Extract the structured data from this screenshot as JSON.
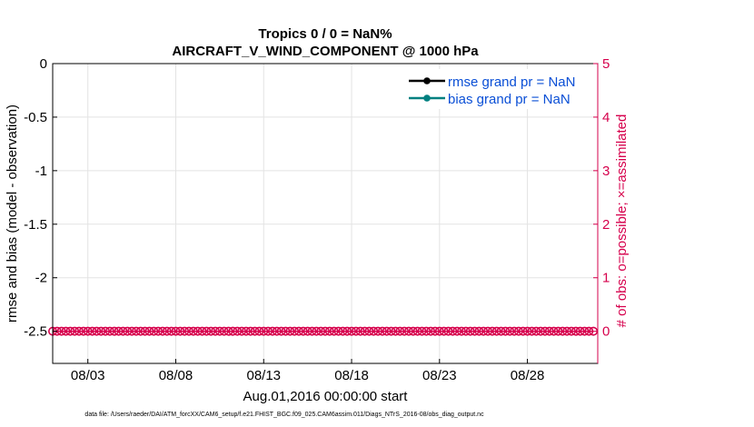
{
  "chart_data": {
    "type": "line",
    "title": "Tropics 0 / 0 = NaN%",
    "subtitle": "AIRCRAFT_V_WIND_COMPONENT @ 1000 hPa",
    "xlabel": "Aug.01,2016 00:00:00 start",
    "ylabel": "rmse and bias (model - observation)",
    "ylabel_right": "# of obs: o=possible; ×=assimilated",
    "x_ticks": [
      "08/03",
      "08/08",
      "08/13",
      "08/18",
      "08/23",
      "08/28"
    ],
    "x_tick_days": [
      3,
      8,
      13,
      18,
      23,
      28
    ],
    "xlim": [
      1,
      32
    ],
    "y_ticks": [
      "0",
      "-0.5",
      "-1",
      "-1.5",
      "-2",
      "-2.5"
    ],
    "y_tick_values": [
      0,
      -0.5,
      -1,
      -1.5,
      -2,
      -2.5
    ],
    "ylim": [
      -2.8,
      0
    ],
    "y2_ticks": [
      "5",
      "4",
      "3",
      "2",
      "1",
      "0"
    ],
    "y2_tick_values": [
      5,
      4,
      3,
      2,
      1,
      0
    ],
    "y2lim": [
      -0.6,
      5
    ],
    "series": [
      {
        "name": "rmse grand pr = NaN",
        "color": "#000000",
        "values": []
      },
      {
        "name": "bias grand pr = NaN",
        "color": "#008080",
        "values": []
      },
      {
        "name": "# of obs possible",
        "axis": "right",
        "color": "#d6004c",
        "x_start_day": 1.0,
        "x_step_days": 0.25,
        "count": 124,
        "value": 0
      }
    ],
    "grid": true,
    "legend": "top-right"
  },
  "footer": "data file: /Users/raeder/DAI/ATM_forcXX/CAM6_setup/f.e21.FHIST_BGC.f09_025.CAM6assim.011/Diags_NTrS_2016-08/obs_diag_output.nc",
  "colors": {
    "axis_right": "#d6004c",
    "legend_text": "#0a4fd6"
  }
}
